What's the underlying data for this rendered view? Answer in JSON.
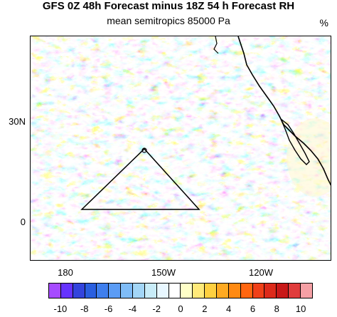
{
  "title": "GFS 0Z 48h Forecast minus 18Z 54 h Forecast RH",
  "subtitle": "mean semitropics 85000 Pa",
  "units": "%",
  "y_axis_labels": [
    "30N",
    "0"
  ],
  "x_axis_labels": [
    "180",
    "150W",
    "120W"
  ],
  "colorbar": {
    "colors": [
      "#a64bff",
      "#6633ff",
      "#3344dd",
      "#2a5fe0",
      "#3f7fee",
      "#5b9cf5",
      "#7fbcf7",
      "#a3d6f7",
      "#c8ecf8",
      "#e8f7ff",
      "#ffffff",
      "#ffffc8",
      "#ffea7a",
      "#ffd040",
      "#ffaa22",
      "#ff8a12",
      "#ff6610",
      "#f04018",
      "#dd2a1a",
      "#c81818",
      "#e03c3c",
      "#f5a0a5"
    ],
    "labels": [
      "-10",
      "-8",
      "-6",
      "-4",
      "-2",
      "0",
      "2",
      "4",
      "6",
      "8",
      "10"
    ]
  }
}
